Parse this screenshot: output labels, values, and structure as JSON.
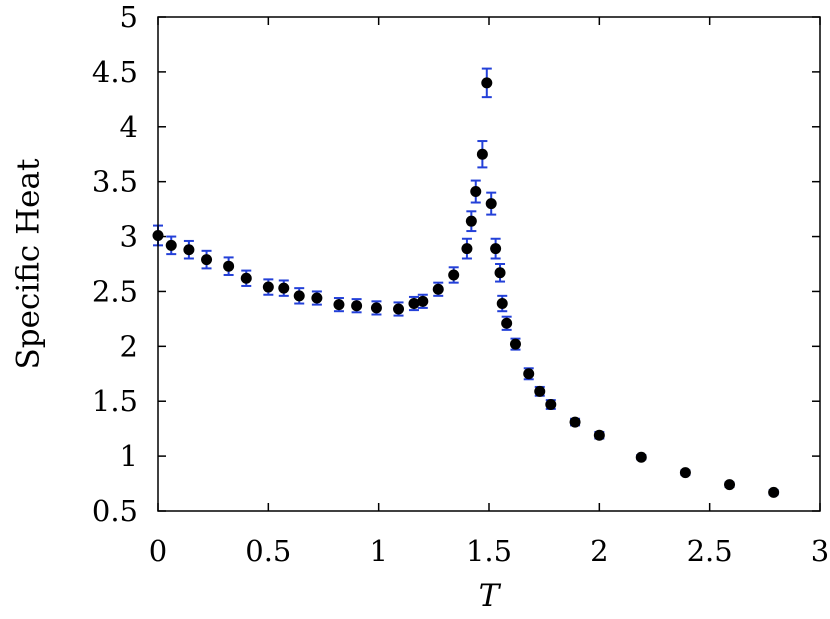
{
  "chart_data": {
    "type": "scatter",
    "title": "",
    "xlabel": "T",
    "ylabel": "Specific Heat",
    "xlim": [
      0,
      3
    ],
    "ylim": [
      0.5,
      5
    ],
    "xticks": [
      "0",
      "0.5",
      "1",
      "1.5",
      "2",
      "2.5",
      "3"
    ],
    "yticks": [
      "0.5",
      "1",
      "1.5",
      "2",
      "2.5",
      "3",
      "3.5",
      "4",
      "4.5",
      "5"
    ],
    "grid": false,
    "legend": "none",
    "marker_color": "#000000",
    "errorbar_color": "#2340d8",
    "points": [
      {
        "x": 0.0,
        "y": 3.01,
        "err": 0.09
      },
      {
        "x": 0.06,
        "y": 2.92,
        "err": 0.08
      },
      {
        "x": 0.14,
        "y": 2.88,
        "err": 0.08
      },
      {
        "x": 0.22,
        "y": 2.79,
        "err": 0.08
      },
      {
        "x": 0.32,
        "y": 2.73,
        "err": 0.08
      },
      {
        "x": 0.4,
        "y": 2.62,
        "err": 0.07
      },
      {
        "x": 0.5,
        "y": 2.54,
        "err": 0.07
      },
      {
        "x": 0.57,
        "y": 2.53,
        "err": 0.07
      },
      {
        "x": 0.64,
        "y": 2.46,
        "err": 0.07
      },
      {
        "x": 0.72,
        "y": 2.44,
        "err": 0.06
      },
      {
        "x": 0.82,
        "y": 2.38,
        "err": 0.06
      },
      {
        "x": 0.9,
        "y": 2.37,
        "err": 0.06
      },
      {
        "x": 0.99,
        "y": 2.35,
        "err": 0.06
      },
      {
        "x": 1.09,
        "y": 2.34,
        "err": 0.06
      },
      {
        "x": 1.16,
        "y": 2.39,
        "err": 0.06
      },
      {
        "x": 1.2,
        "y": 2.41,
        "err": 0.06
      },
      {
        "x": 1.27,
        "y": 2.52,
        "err": 0.06
      },
      {
        "x": 1.34,
        "y": 2.65,
        "err": 0.07
      },
      {
        "x": 1.4,
        "y": 2.89,
        "err": 0.09
      },
      {
        "x": 1.42,
        "y": 3.14,
        "err": 0.09
      },
      {
        "x": 1.44,
        "y": 3.41,
        "err": 0.1
      },
      {
        "x": 1.47,
        "y": 3.75,
        "err": 0.12
      },
      {
        "x": 1.49,
        "y": 4.4,
        "err": 0.13
      },
      {
        "x": 1.51,
        "y": 3.3,
        "err": 0.1
      },
      {
        "x": 1.53,
        "y": 2.89,
        "err": 0.09
      },
      {
        "x": 1.55,
        "y": 2.67,
        "err": 0.08
      },
      {
        "x": 1.56,
        "y": 2.39,
        "err": 0.07
      },
      {
        "x": 1.58,
        "y": 2.21,
        "err": 0.06
      },
      {
        "x": 1.62,
        "y": 2.02,
        "err": 0.05
      },
      {
        "x": 1.68,
        "y": 1.75,
        "err": 0.05
      },
      {
        "x": 1.73,
        "y": 1.59,
        "err": 0.04
      },
      {
        "x": 1.78,
        "y": 1.47,
        "err": 0.04
      },
      {
        "x": 1.89,
        "y": 1.31,
        "err": 0.03
      },
      {
        "x": 2.0,
        "y": 1.19,
        "err": 0.03
      },
      {
        "x": 2.19,
        "y": 0.99,
        "err": 0.02
      },
      {
        "x": 2.39,
        "y": 0.85,
        "err": 0.02
      },
      {
        "x": 2.59,
        "y": 0.74,
        "err": 0.02
      },
      {
        "x": 2.79,
        "y": 0.67,
        "err": 0.02
      }
    ]
  }
}
